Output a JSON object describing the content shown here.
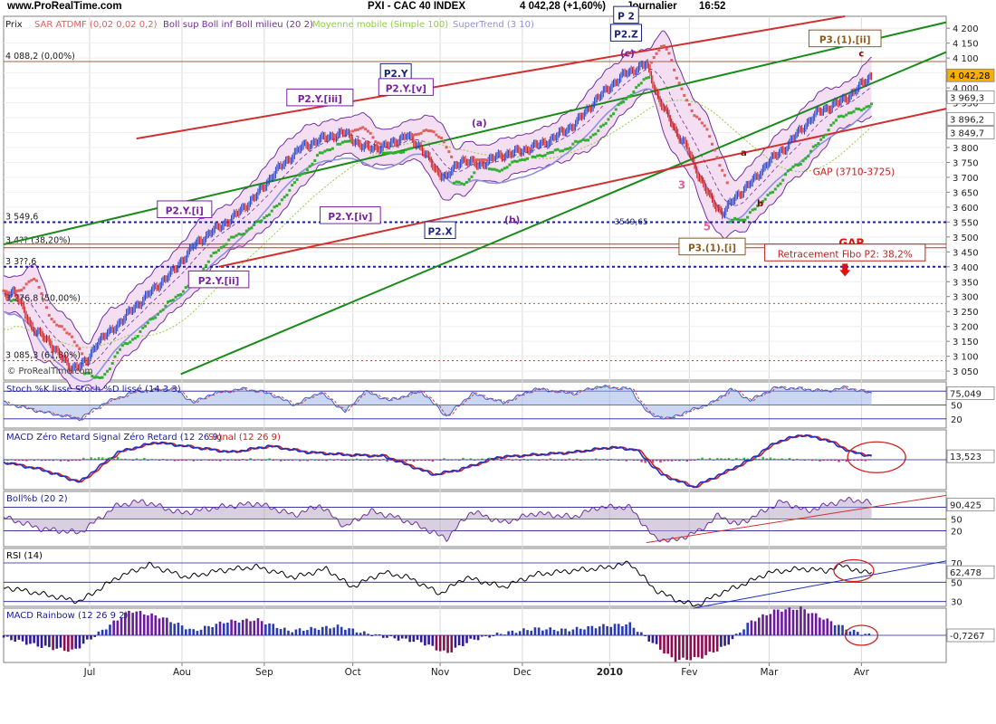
{
  "header": {
    "site": "www.ProRealTime.com",
    "symbol": "PXI - CAC 40 INDEX",
    "last": "4 042,28 (+1,60%)",
    "period": "Journalier",
    "time": "16:52"
  },
  "colors": {
    "price_up": "#2a46c8",
    "price_down": "#d02020",
    "sar": "#e06060",
    "sar_up": "#30b030",
    "boll": "#7030a0",
    "boll_fill": "#f3dff1",
    "ma": "#90d040",
    "supertrend": "#9090e0",
    "channel_green": "#1a8a1a",
    "channel_red": "#d03030",
    "level_blue": "#1c1c9a",
    "level_red": "#c03030",
    "level_brown": "#a06040",
    "elliott_purple": "#7b1fa2",
    "elliott_navy": "#1a237e",
    "elliott_brown": "#8d5a1c",
    "last_price_box": "#f5b000"
  },
  "chart_data": [
    {
      "id": "price",
      "type": "line",
      "title": "PXI - CAC 40 INDEX",
      "legend": {
        "prix": "Prix",
        "sar": "SAR ATDMF (0,02 0,02 0,2)",
        "boll": "Boll sup Boll inf Boll milieu (20 2)",
        "ma": "Moyenne mobile (Simple 100)",
        "supertrend": "SuperTrend (3 10)"
      },
      "ylim": [
        3020,
        4240
      ],
      "y_ticks": [
        3050,
        3100,
        3150,
        3200,
        3250,
        3300,
        3350,
        3400,
        3450,
        3500,
        3550,
        3600,
        3650,
        3700,
        3750,
        3800,
        3850,
        3900,
        3950,
        4000,
        4050,
        4100,
        4150,
        4200
      ],
      "y_tick_labels": [
        "3 050",
        "3 100",
        "3 150",
        "3 200",
        "3 250",
        "3 300",
        "3 350",
        "3 400",
        "3 450",
        "3 500",
        "3 550",
        "3 600",
        "3 650",
        "3 700",
        "3 750",
        "3 800",
        "3 850",
        "3 900",
        "3 950",
        "4 000",
        "4 050",
        "4 100",
        "4 150",
        "4 200"
      ],
      "x_labels": [
        {
          "label": "Jul",
          "t": 68
        },
        {
          "label": "Aou",
          "t": 141
        },
        {
          "label": "Sep",
          "t": 206
        },
        {
          "label": "Oct",
          "t": 276
        },
        {
          "label": "Nov",
          "t": 345
        },
        {
          "label": "Dec",
          "t": 410
        },
        {
          "label": "2010",
          "t": 479
        },
        {
          "label": "Fev",
          "t": 542
        },
        {
          "label": "Mar",
          "t": 605
        },
        {
          "label": "Avr",
          "t": 678
        }
      ],
      "t_max": 745,
      "close_anchors": [
        [
          0,
          3300
        ],
        [
          8,
          3320
        ],
        [
          22,
          3200
        ],
        [
          40,
          3130
        ],
        [
          52,
          3060
        ],
        [
          66,
          3080
        ],
        [
          74,
          3150
        ],
        [
          84,
          3180
        ],
        [
          100,
          3250
        ],
        [
          120,
          3330
        ],
        [
          135,
          3390
        ],
        [
          150,
          3470
        ],
        [
          165,
          3520
        ],
        [
          180,
          3560
        ],
        [
          200,
          3640
        ],
        [
          215,
          3720
        ],
        [
          235,
          3800
        ],
        [
          252,
          3830
        ],
        [
          270,
          3850
        ],
        [
          284,
          3800
        ],
        [
          300,
          3800
        ],
        [
          318,
          3840
        ],
        [
          330,
          3800
        ],
        [
          342,
          3720
        ],
        [
          350,
          3700
        ],
        [
          362,
          3760
        ],
        [
          376,
          3740
        ],
        [
          390,
          3770
        ],
        [
          410,
          3790
        ],
        [
          430,
          3820
        ],
        [
          452,
          3880
        ],
        [
          466,
          3950
        ],
        [
          478,
          4000
        ],
        [
          492,
          4050
        ],
        [
          498,
          4060
        ],
        [
          508,
          4080
        ],
        [
          518,
          3960
        ],
        [
          532,
          3850
        ],
        [
          540,
          3800
        ],
        [
          550,
          3700
        ],
        [
          560,
          3620
        ],
        [
          568,
          3580
        ],
        [
          580,
          3640
        ],
        [
          595,
          3700
        ],
        [
          604,
          3750
        ],
        [
          618,
          3800
        ],
        [
          630,
          3860
        ],
        [
          644,
          3920
        ],
        [
          660,
          3950
        ],
        [
          672,
          3985
        ],
        [
          680,
          4020
        ],
        [
          686,
          4042
        ]
      ],
      "last_price": "4 042,28",
      "indicator_values": [
        {
          "label": "3 969,3",
          "value": 3969
        },
        {
          "label": "3 896,2",
          "value": 3896
        },
        {
          "label": "3 849,7",
          "value": 3850
        }
      ],
      "levels": [
        {
          "value": 4088.2,
          "label": "4 088,2 (0,00%)",
          "style": "brown"
        },
        {
          "value": 3549.6,
          "label": "3 549,6",
          "style": "blue_dotted"
        },
        {
          "value": 3470,
          "label": "3 4?? (38,20%)",
          "style": "red_double"
        },
        {
          "value": 3400,
          "label": "3 3??,6",
          "style": "blue_dotted"
        },
        {
          "value": 3276.8,
          "label": "3 276,8 (50,00%)",
          "style": "brown_dotted"
        },
        {
          "value": 3085.3,
          "label": "3 085,3 (61,80%)",
          "style": "brown_dotted"
        }
      ],
      "channels": [
        {
          "color": "green",
          "p1": [
            0,
            3475
          ],
          "p2": [
            745,
            4220
          ]
        },
        {
          "color": "green",
          "p1": [
            140,
            3040
          ],
          "p2": [
            745,
            4120
          ]
        },
        {
          "color": "red",
          "p1": [
            105,
            3830
          ],
          "p2": [
            665,
            4240
          ]
        },
        {
          "color": "red",
          "p1": [
            170,
            3400
          ],
          "p2": [
            745,
            3930
          ]
        }
      ],
      "annotations": [
        {
          "text": "P2.Y",
          "t": 310,
          "v": 4040,
          "style": "navy_box"
        },
        {
          "text": "P2.Y.[v]",
          "t": 318,
          "v": 3990,
          "style": "purple_box"
        },
        {
          "text": "P2.Y.[iii]",
          "t": 250,
          "v": 3955,
          "style": "purple_box"
        },
        {
          "text": "P2.Y.[i]",
          "t": 143,
          "v": 3580,
          "style": "purple_box"
        },
        {
          "text": "P2.Y.[iv]",
          "t": 274,
          "v": 3560,
          "style": "purple_box"
        },
        {
          "text": "P2.Y.[ii]",
          "t": 170,
          "v": 3345,
          "style": "purple_box"
        },
        {
          "text": "P2.X",
          "t": 345,
          "v": 3510,
          "style": "navy_box"
        },
        {
          "text": "P2.Z",
          "t": 492,
          "v": 4172,
          "style": "navy_box"
        },
        {
          "text": "P 2",
          "t": 492,
          "v": 4232,
          "style": "navy_box"
        },
        {
          "text": "P3.(1).[ii]",
          "t": 665,
          "v": 4153,
          "style": "brown_box"
        },
        {
          "text": "P3.(1).[i]",
          "t": 560,
          "v": 3455,
          "style": "brown_box"
        },
        {
          "text": "(a)",
          "t": 376,
          "v": 3875,
          "style": "purple_text"
        },
        {
          "text": "(b)",
          "t": 402,
          "v": 3550,
          "style": "purple_text"
        },
        {
          "text": "(c)",
          "t": 493,
          "v": 4108,
          "style": "purple_text"
        },
        {
          "text": "c",
          "t": 678,
          "v": 4108,
          "style": "darkred_text"
        },
        {
          "text": "a",
          "t": 585,
          "v": 3775,
          "style": "darkred_text"
        },
        {
          "text": "b",
          "t": 598,
          "v": 3605,
          "style": "darkred_text"
        },
        {
          "text": "3",
          "t": 536,
          "v": 3665,
          "style": "pink_text"
        },
        {
          "text": "5",
          "t": 556,
          "v": 3525,
          "style": "pink_text"
        },
        {
          "text": "3549,65",
          "t": 496,
          "v": 3545,
          "style": "navy_text"
        },
        {
          "text": "GAP (3710-3725)",
          "t": 672,
          "v": 3710,
          "style": "red_text"
        },
        {
          "text": "GAP",
          "t": 670,
          "v": 3470,
          "style": "red_bold"
        },
        {
          "text": "Retracement Fibo P2: 38,2%",
          "t": 665,
          "v": 3435,
          "style": "red_box"
        }
      ]
    },
    {
      "id": "stoch",
      "type": "area",
      "title": "Stoch %K lissé Stoch %D lissé (14 3 3)",
      "ylim": [
        0,
        100
      ],
      "y_tick_labels": [
        "80",
        "50",
        "20"
      ],
      "levels": [
        80,
        50,
        20
      ],
      "value_label": "75,049",
      "anchors": [
        [
          0,
          55
        ],
        [
          30,
          35
        ],
        [
          60,
          20
        ],
        [
          80,
          55
        ],
        [
          105,
          80
        ],
        [
          135,
          85
        ],
        [
          150,
          55
        ],
        [
          165,
          75
        ],
        [
          190,
          85
        ],
        [
          210,
          75
        ],
        [
          230,
          50
        ],
        [
          250,
          78
        ],
        [
          270,
          35
        ],
        [
          285,
          80
        ],
        [
          305,
          60
        ],
        [
          330,
          80
        ],
        [
          350,
          25
        ],
        [
          370,
          75
        ],
        [
          395,
          55
        ],
        [
          420,
          85
        ],
        [
          450,
          75
        ],
        [
          470,
          90
        ],
        [
          495,
          85
        ],
        [
          510,
          30
        ],
        [
          525,
          20
        ],
        [
          545,
          40
        ],
        [
          560,
          55
        ],
        [
          575,
          85
        ],
        [
          590,
          60
        ],
        [
          610,
          88
        ],
        [
          630,
          85
        ],
        [
          650,
          80
        ],
        [
          665,
          88
        ],
        [
          686,
          75
        ]
      ]
    },
    {
      "id": "macd",
      "type": "line",
      "title": "MACD Zéro Retard Signal Zéro Retard (12 26 9)",
      "legend": [
        "MACD Zéro Retard",
        "Signal Zéro Retard (12 26 9)",
        "Signal (12 26 9)"
      ],
      "ylim": [
        -120,
        120
      ],
      "value_label": "13,523",
      "anchors": [
        [
          0,
          -10
        ],
        [
          30,
          -40
        ],
        [
          60,
          -90
        ],
        [
          90,
          30
        ],
        [
          120,
          70
        ],
        [
          150,
          50
        ],
        [
          180,
          30
        ],
        [
          210,
          55
        ],
        [
          240,
          30
        ],
        [
          270,
          20
        ],
        [
          300,
          15
        ],
        [
          340,
          -60
        ],
        [
          360,
          -40
        ],
        [
          390,
          10
        ],
        [
          420,
          20
        ],
        [
          450,
          30
        ],
        [
          480,
          50
        ],
        [
          500,
          40
        ],
        [
          520,
          -60
        ],
        [
          545,
          -110
        ],
        [
          570,
          -50
        ],
        [
          590,
          0
        ],
        [
          610,
          70
        ],
        [
          630,
          100
        ],
        [
          650,
          80
        ],
        [
          670,
          30
        ],
        [
          686,
          15
        ]
      ]
    },
    {
      "id": "bollb",
      "type": "line",
      "title": "Boll%b (20 2)",
      "ylim": [
        -20,
        120
      ],
      "y_tick_labels": [
        "80",
        "50",
        "20"
      ],
      "levels": [
        80,
        50,
        20
      ],
      "value_label": "90,425",
      "trendline": [
        [
          508,
          -10
        ],
        [
          745,
          110
        ]
      ],
      "anchors": [
        [
          0,
          55
        ],
        [
          30,
          25
        ],
        [
          60,
          15
        ],
        [
          90,
          85
        ],
        [
          110,
          95
        ],
        [
          140,
          65
        ],
        [
          170,
          80
        ],
        [
          200,
          90
        ],
        [
          230,
          60
        ],
        [
          250,
          85
        ],
        [
          270,
          30
        ],
        [
          290,
          70
        ],
        [
          310,
          55
        ],
        [
          330,
          30
        ],
        [
          350,
          0
        ],
        [
          370,
          70
        ],
        [
          395,
          40
        ],
        [
          420,
          65
        ],
        [
          450,
          55
        ],
        [
          470,
          80
        ],
        [
          495,
          80
        ],
        [
          515,
          0
        ],
        [
          530,
          -5
        ],
        [
          550,
          20
        ],
        [
          565,
          60
        ],
        [
          580,
          35
        ],
        [
          595,
          60
        ],
        [
          615,
          95
        ],
        [
          635,
          70
        ],
        [
          655,
          90
        ],
        [
          670,
          100
        ],
        [
          686,
          90
        ]
      ]
    },
    {
      "id": "rsi",
      "type": "line",
      "title": "RSI (14)",
      "ylim": [
        25,
        85
      ],
      "y_tick_labels": [
        "70",
        "50",
        "30"
      ],
      "levels": [
        70,
        50,
        30
      ],
      "value_label": "62,478",
      "trendline": [
        [
          545,
          23
        ],
        [
          745,
          72
        ]
      ],
      "anchors": [
        [
          0,
          45
        ],
        [
          30,
          38
        ],
        [
          60,
          30
        ],
        [
          90,
          55
        ],
        [
          115,
          68
        ],
        [
          145,
          55
        ],
        [
          170,
          62
        ],
        [
          200,
          66
        ],
        [
          230,
          55
        ],
        [
          255,
          64
        ],
        [
          275,
          45
        ],
        [
          300,
          60
        ],
        [
          320,
          55
        ],
        [
          345,
          38
        ],
        [
          365,
          55
        ],
        [
          395,
          45
        ],
        [
          420,
          58
        ],
        [
          450,
          62
        ],
        [
          475,
          65
        ],
        [
          495,
          70
        ],
        [
          515,
          42
        ],
        [
          535,
          30
        ],
        [
          548,
          26
        ],
        [
          565,
          38
        ],
        [
          585,
          48
        ],
        [
          605,
          60
        ],
        [
          630,
          64
        ],
        [
          650,
          62
        ],
        [
          665,
          68
        ],
        [
          676,
          60
        ],
        [
          686,
          62
        ]
      ]
    },
    {
      "id": "rainbow",
      "type": "bar",
      "title": "MACD Rainbow (12 26 9 2)",
      "ylim": [
        -60,
        60
      ],
      "value_label": "-0,7267",
      "anchors": [
        [
          0,
          -5
        ],
        [
          30,
          -25
        ],
        [
          55,
          -35
        ],
        [
          75,
          5
        ],
        [
          100,
          55
        ],
        [
          125,
          40
        ],
        [
          150,
          10
        ],
        [
          175,
          30
        ],
        [
          200,
          35
        ],
        [
          225,
          10
        ],
        [
          245,
          15
        ],
        [
          265,
          20
        ],
        [
          285,
          5
        ],
        [
          305,
          -5
        ],
        [
          330,
          -15
        ],
        [
          350,
          -40
        ],
        [
          370,
          -10
        ],
        [
          395,
          5
        ],
        [
          420,
          15
        ],
        [
          445,
          12
        ],
        [
          470,
          20
        ],
        [
          495,
          25
        ],
        [
          510,
          -10
        ],
        [
          530,
          -55
        ],
        [
          550,
          -50
        ],
        [
          570,
          -25
        ],
        [
          590,
          30
        ],
        [
          610,
          55
        ],
        [
          630,
          60
        ],
        [
          650,
          35
        ],
        [
          670,
          10
        ],
        [
          686,
          -1
        ]
      ]
    }
  ]
}
